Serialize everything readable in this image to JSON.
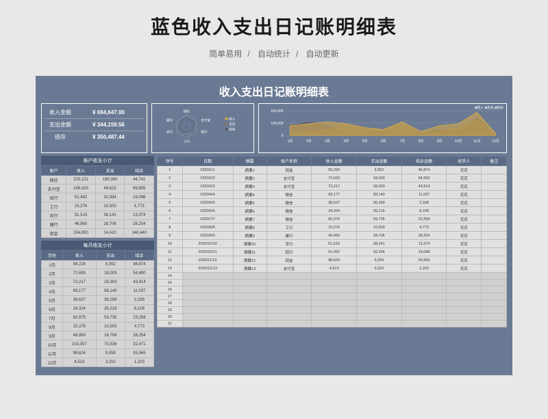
{
  "page": {
    "main_title": "蓝色收入支出日记账明细表",
    "subtitle_parts": [
      "简单易用",
      "自动统计",
      "自动更新"
    ]
  },
  "sheet": {
    "title": "收入支出日记账明细表",
    "summary": [
      {
        "label": "收入金额",
        "value": "¥ 694,647.00"
      },
      {
        "label": "支出金额",
        "value": "¥ 344,159.56"
      },
      {
        "label": "结存",
        "value": "¥ 350,487.44"
      }
    ],
    "radar": {
      "labels": [
        "微信",
        "支付宝",
        "招行",
        "工行",
        "农行",
        "建行",
        "现金"
      ],
      "legend": [
        "收入",
        "支出",
        "结余"
      ]
    },
    "chart": {
      "legend": "■收入 ■支出 ■结余",
      "x_labels": [
        "1月",
        "2月",
        "3月",
        "4月",
        "5月",
        "6月",
        "7月",
        "8月",
        "9月",
        "10月",
        "11月",
        "12月"
      ],
      "y_labels": [
        "200,000",
        "100,000",
        "0"
      ],
      "income_points": [
        5,
        6,
        7,
        6,
        4,
        3,
        7,
        2,
        5,
        6,
        12,
        1
      ],
      "expense_points": [
        1,
        2,
        3,
        6,
        4,
        3,
        6,
        1,
        2,
        4,
        8,
        0.5
      ],
      "balance_points": [
        5,
        7,
        5,
        1,
        0.5,
        2,
        1,
        0.5,
        3,
        2,
        9,
        0.2
      ],
      "colors": {
        "income": "#d4a94a",
        "expense": "#8a7a5a",
        "balance": "#5a5a6a"
      }
    },
    "account_table": {
      "title": "账户收支小计",
      "columns": [
        "账户",
        "收入",
        "支出",
        "结余"
      ],
      "rows": [
        [
          "微信",
          "225,131",
          "180,390",
          "44,741"
        ],
        [
          "支付宝",
          "149,423",
          "49,615",
          "99,808"
        ],
        [
          "招行",
          "51,492",
          "32,394",
          "19,098"
        ],
        [
          "工行",
          "15,276",
          "10,503",
          "4,773"
        ],
        [
          "农行",
          "51,515",
          "38,141",
          "13,374"
        ],
        [
          "建行",
          "46,960",
          "18,706",
          "28,254"
        ],
        [
          "现金",
          "154,850",
          "14,410",
          "140,440"
        ]
      ]
    },
    "month_table": {
      "title": "每月收支小计",
      "columns": [
        "月份",
        "收入",
        "支出",
        "结余"
      ],
      "rows": [
        [
          "1月",
          "56,226",
          "9,352",
          "46,874"
        ],
        [
          "2月",
          "72,693",
          "18,003",
          "54,690"
        ],
        [
          "3月",
          "72,217",
          "28,303",
          "43,914"
        ],
        [
          "4月",
          "69,177",
          "58,140",
          "11,037"
        ],
        [
          "5月",
          "38,637",
          "36,299",
          "2,338"
        ],
        [
          "6月",
          "34,324",
          "26,216",
          "8,108"
        ],
        [
          "7月",
          "82,975",
          "59,735",
          "23,258"
        ],
        [
          "8月",
          "15,276",
          "10,503",
          "4,773"
        ],
        [
          "9月",
          "46,960",
          "18,706",
          "28,254"
        ],
        [
          "10月",
          "103,007",
          "70,536",
          "32,471"
        ],
        [
          "11月",
          "98,624",
          "5,059",
          "93,565"
        ],
        [
          "12月",
          "4,513",
          "3,310",
          "1,203"
        ]
      ]
    },
    "main_table": {
      "columns": [
        "序号",
        "日期",
        "摘要",
        "账户名称",
        "收入金额",
        "支出金额",
        "结余金额",
        "经手人",
        "备注"
      ],
      "rows": [
        [
          "1",
          "2020/1/1",
          "摘要1",
          "现金",
          "56,226",
          "9,352",
          "46,874",
          "花花",
          ""
        ],
        [
          "2",
          "2020/2/2",
          "摘要2",
          "支付宝",
          "72,693",
          "18,003",
          "54,690",
          "花花",
          ""
        ],
        [
          "3",
          "2020/3/3",
          "摘要3",
          "支付宝",
          "72,217",
          "28,303",
          "43,914",
          "花花",
          ""
        ],
        [
          "4",
          "2020/4/4",
          "摘要4",
          "微信",
          "69,177",
          "58,140",
          "11,037",
          "花花",
          ""
        ],
        [
          "5",
          "2020/5/5",
          "摘要5",
          "微信",
          "38,637",
          "36,299",
          "2,338",
          "花花",
          ""
        ],
        [
          "6",
          "2020/6/6",
          "摘要6",
          "微信",
          "34,324",
          "26,216",
          "8,108",
          "花花",
          ""
        ],
        [
          "7",
          "2020/7/7",
          "摘要7",
          "微信",
          "82,975",
          "59,735",
          "23,258",
          "花花",
          ""
        ],
        [
          "8",
          "2020/8/8",
          "摘要8",
          "工行",
          "15,276",
          "10,503",
          "4,773",
          "花花",
          ""
        ],
        [
          "9",
          "2020/9/9",
          "摘要9",
          "建行",
          "46,960",
          "18,706",
          "28,254",
          "花花",
          ""
        ],
        [
          "10",
          "2020/10/10",
          "摘要10",
          "农行",
          "51,515",
          "38,141",
          "13,374",
          "花花",
          ""
        ],
        [
          "11",
          "2020/10/11",
          "摘要11",
          "招行",
          "51,492",
          "32,394",
          "19,098",
          "花花",
          ""
        ],
        [
          "12",
          "2020/11/12",
          "摘要12",
          "现金",
          "98,624",
          "5,059",
          "93,565",
          "花花",
          ""
        ],
        [
          "13",
          "2020/12/13",
          "摘要13",
          "支付宝",
          "4,513",
          "3,310",
          "1,203",
          "花花",
          ""
        ]
      ],
      "empty_rows": [
        14,
        15,
        16,
        17,
        18,
        19,
        20,
        21
      ]
    }
  },
  "colors": {
    "sheet_bg": "#6b7a94",
    "header_bg": "#5a6a85",
    "cell_bg": "#d4d4d4"
  }
}
